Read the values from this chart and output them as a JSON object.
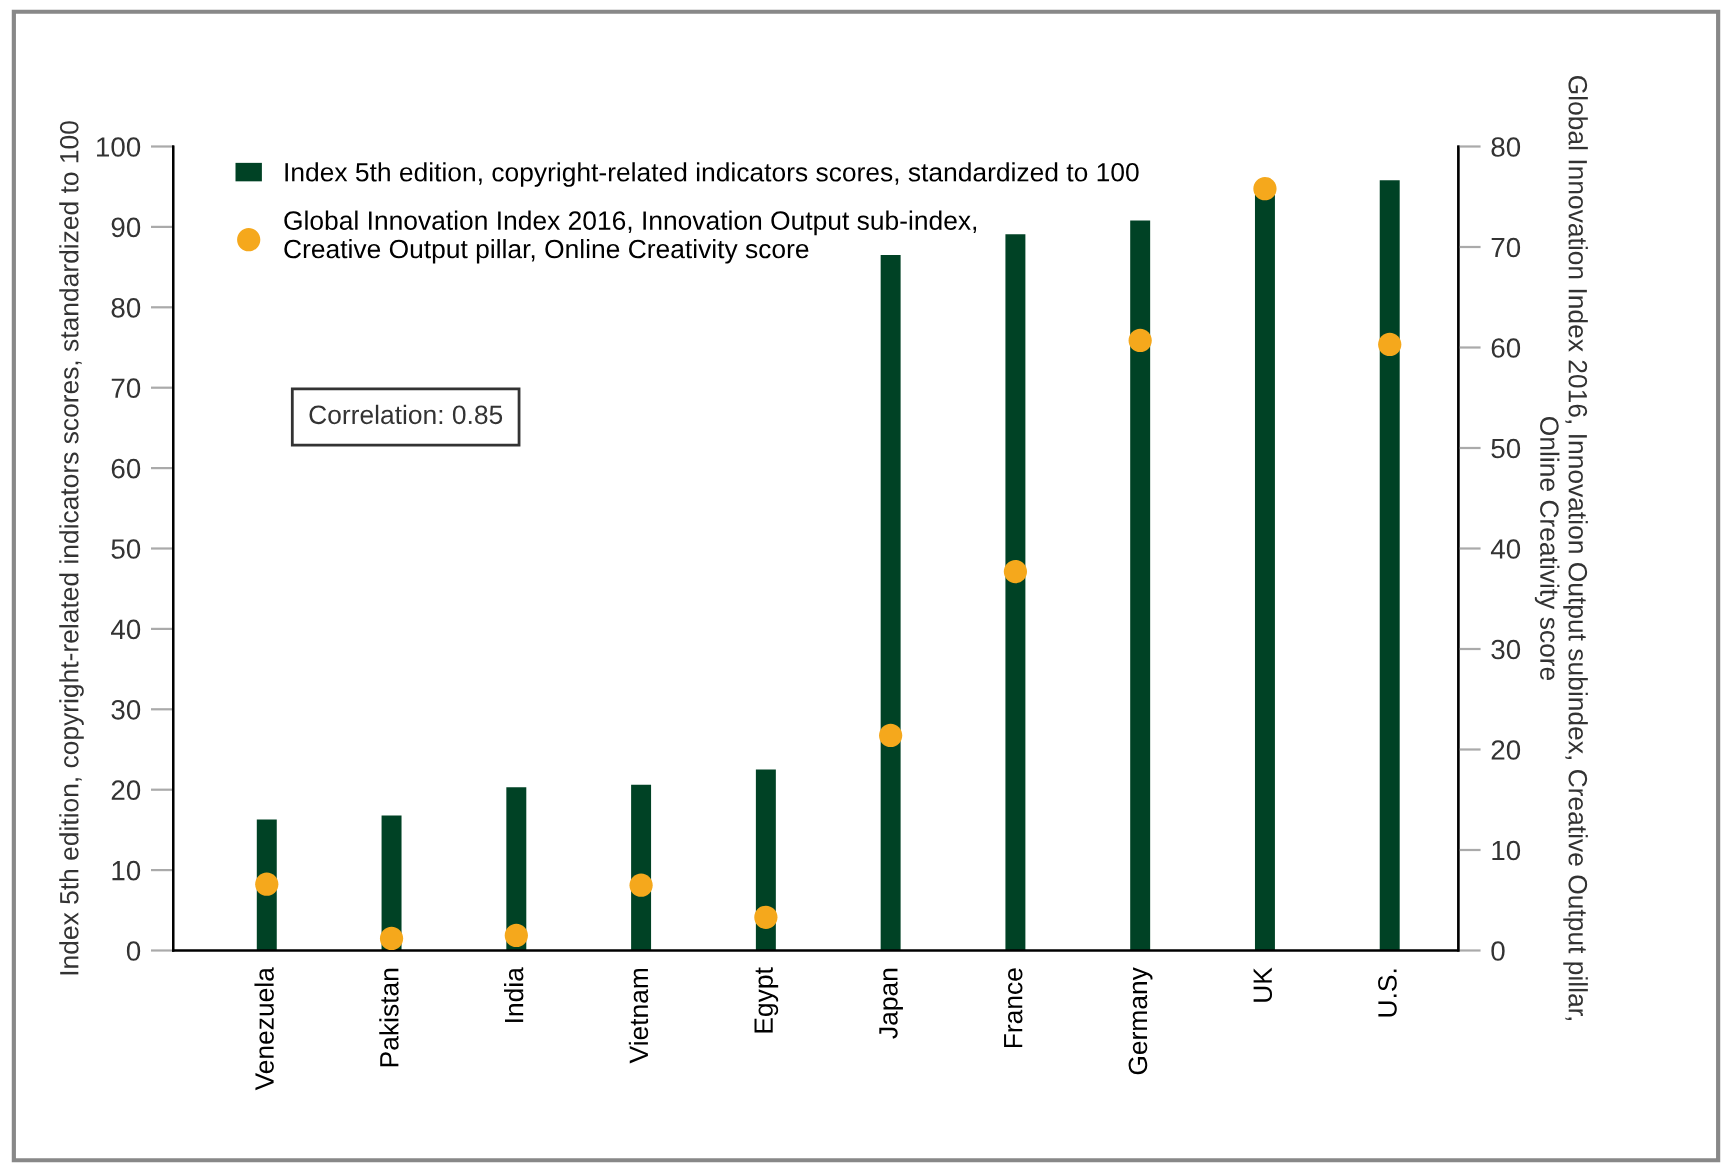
{
  "chart_data": {
    "type": "bar",
    "categories": [
      "Venezuela",
      "Pakistan",
      "India",
      "Vietnam",
      "Egypt",
      "Japan",
      "France",
      "Germany",
      "UK",
      "U.S."
    ],
    "ylabel": "Index 5th edition, copyright-related indicators scores, standardized to 100",
    "y2label": "Global Innovation Index 2016, Innovation Output subindex, Creative Output pillar,\nOnline Creativity score",
    "series": [
      {
        "name": "Index 5th edition, copyright-related indicators scores, standardized to 100",
        "color": "#004225",
        "values": [
          16.3,
          16.8,
          20.3,
          20.6,
          22.5,
          86.5,
          89.1,
          90.8,
          94.0,
          95.8
        ]
      },
      {
        "name": "Global Innovation Index 2016, Innovation Output sub-index,\nCreative Output pillar, Online Creativity score",
        "type": "scatter",
        "axis": "y2",
        "color": "#f5a81c",
        "values": [
          6.6,
          1.2,
          1.5,
          6.5,
          3.3,
          21.4,
          37.7,
          60.7,
          75.8,
          60.3
        ]
      }
    ],
    "ylim": [
      0,
      100
    ],
    "yticks": [
      0,
      10,
      20,
      30,
      40,
      50,
      60,
      70,
      80,
      90,
      100
    ],
    "y2lim": [
      0,
      80
    ],
    "y2ticks": [
      0,
      10,
      20,
      30,
      40,
      50,
      60,
      70,
      80
    ],
    "annotations": [
      "Correlation: 0.85"
    ],
    "legend": "top left",
    "grid": false,
    "marker": "circle"
  }
}
